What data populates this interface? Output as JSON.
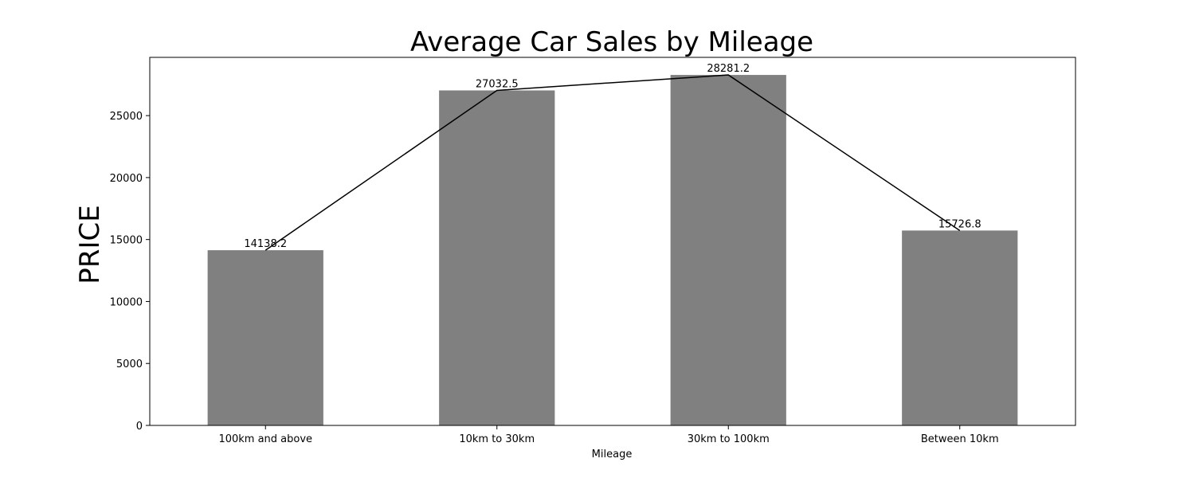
{
  "chart_data": {
    "type": "bar",
    "title": "Average Car Sales by Mileage",
    "xlabel": "Mileage",
    "ylabel": "PRICE",
    "categories": [
      "100km and above",
      "10km to 30km",
      "30km to 100km",
      "Between 10km"
    ],
    "values": [
      14138.2,
      27032.5,
      28281.2,
      15726.8
    ],
    "value_labels": [
      "14138.2",
      "27032.5",
      "28281.2",
      "15726.8"
    ],
    "overlay_line": {
      "type": "line",
      "values": [
        14138.2,
        27032.5,
        28281.2,
        15726.8
      ],
      "color": "#000000"
    },
    "ylim": [
      0,
      29700
    ],
    "yticks": [
      0,
      5000,
      10000,
      15000,
      20000,
      25000
    ],
    "ytick_labels": [
      "0",
      "5000",
      "10000",
      "15000",
      "20000",
      "25000"
    ],
    "grid": false,
    "legend": "none",
    "colors": {
      "bar": "#808080",
      "line": "#000000",
      "axes": "#000000",
      "background": "#ffffff"
    }
  }
}
